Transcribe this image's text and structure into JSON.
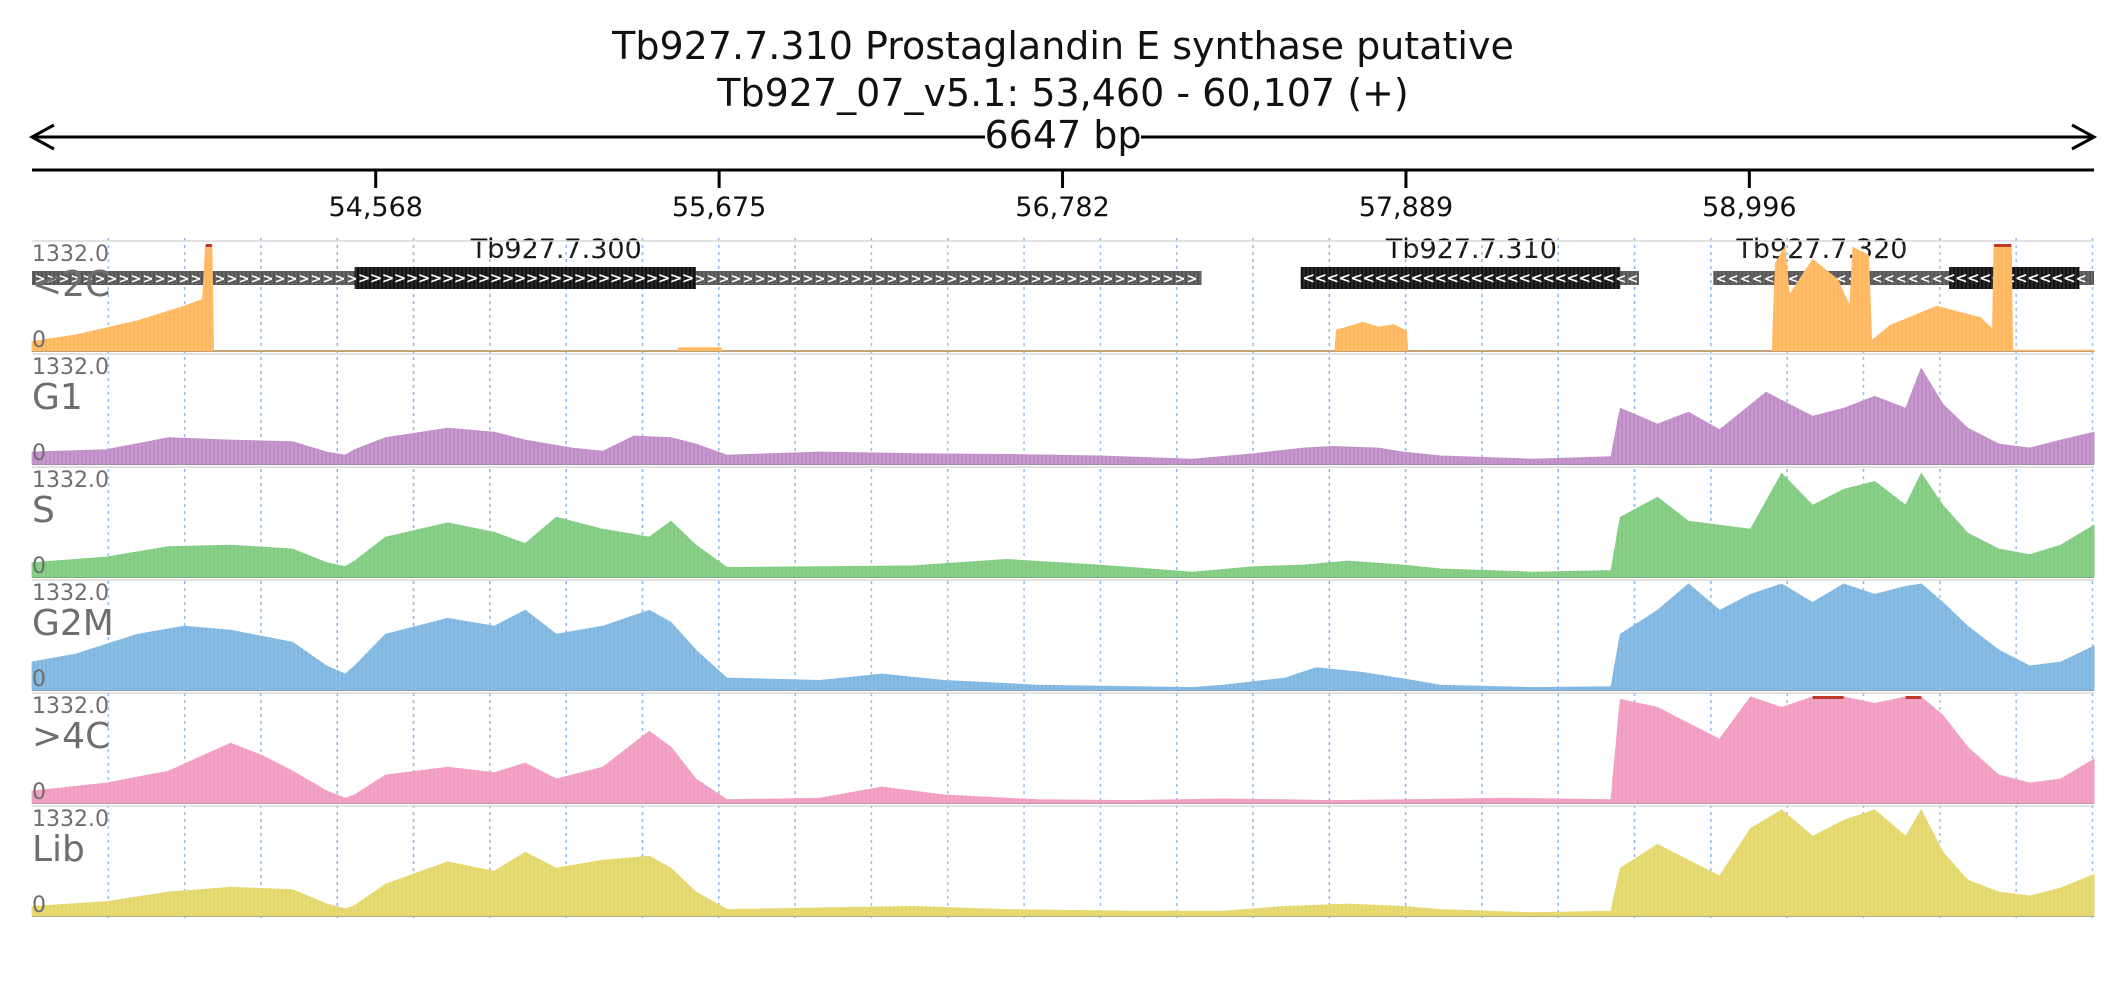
{
  "chart_data": {
    "type": "area",
    "title": "Tb927.7.310  Prostaglandin E synthase  putative",
    "subtitle": "Tb927_07_v5.1: 53,460 - 60,107 (+)",
    "span_label": "6647 bp",
    "x_range": [
      53460,
      60107
    ],
    "ticks": [
      {
        "value": 54568,
        "label": "54,568"
      },
      {
        "value": 55675,
        "label": "55,675"
      },
      {
        "value": 56782,
        "label": "56,782"
      },
      {
        "value": 57889,
        "label": "57,889"
      },
      {
        "value": 58996,
        "label": "58,996"
      }
    ],
    "gridlines_interval_bp": 246,
    "genes": [
      {
        "name": "Tb927.7.300",
        "show_label": true,
        "label_pos": 55150,
        "strand": "+",
        "utr": [
          53460,
          57230
        ],
        "cds": [
          54500,
          55600
        ]
      },
      {
        "name": "Tb927.7.310",
        "show_label": true,
        "label_pos": 58100,
        "strand": "-",
        "utr": [
          57550,
          58640
        ],
        "cds": [
          57550,
          58580
        ]
      },
      {
        "name": "Tb927.7.320",
        "show_label": true,
        "label_pos": 59230,
        "strand": "-",
        "utr": [
          58880,
          60107
        ],
        "cds": [
          59640,
          60060
        ]
      }
    ],
    "y_max_label": "1332.0",
    "y_min_label": "0",
    "y_max": 1332,
    "tracks": [
      {
        "name": "<2C",
        "color": "#ffb65c",
        "clip_color": "#c0392b",
        "profile": [
          [
            53460,
            120
          ],
          [
            53600,
            200
          ],
          [
            53800,
            380
          ],
          [
            53950,
            560
          ],
          [
            54010,
            650
          ],
          [
            54020,
            1332
          ],
          [
            54040,
            1332
          ],
          [
            54045,
            0
          ],
          [
            55540,
            0
          ],
          [
            55545,
            40
          ],
          [
            55680,
            40
          ],
          [
            55685,
            0
          ],
          [
            57660,
            0
          ],
          [
            57665,
            260
          ],
          [
            57750,
            360
          ],
          [
            57800,
            300
          ],
          [
            57850,
            330
          ],
          [
            57890,
            250
          ],
          [
            57895,
            0
          ],
          [
            59070,
            0
          ],
          [
            59080,
            1100
          ],
          [
            59110,
            1300
          ],
          [
            59125,
            700
          ],
          [
            59200,
            1150
          ],
          [
            59280,
            900
          ],
          [
            59320,
            560
          ],
          [
            59330,
            1300
          ],
          [
            59380,
            1200
          ],
          [
            59390,
            130
          ],
          [
            59450,
            320
          ],
          [
            59600,
            560
          ],
          [
            59740,
            420
          ],
          [
            59780,
            270
          ],
          [
            59785,
            1332
          ],
          [
            59840,
            1332
          ],
          [
            59845,
            10
          ],
          [
            60107,
            10
          ]
        ]
      },
      {
        "name": "G1",
        "color": "#c08cc8",
        "profile": [
          [
            53460,
            150
          ],
          [
            53700,
            180
          ],
          [
            53900,
            330
          ],
          [
            54100,
            300
          ],
          [
            54300,
            280
          ],
          [
            54410,
            150
          ],
          [
            54470,
            110
          ],
          [
            54500,
            180
          ],
          [
            54600,
            330
          ],
          [
            54800,
            450
          ],
          [
            54950,
            400
          ],
          [
            55050,
            300
          ],
          [
            55200,
            200
          ],
          [
            55300,
            160
          ],
          [
            55400,
            350
          ],
          [
            55520,
            330
          ],
          [
            55600,
            250
          ],
          [
            55700,
            110
          ],
          [
            56000,
            150
          ],
          [
            56300,
            130
          ],
          [
            56600,
            120
          ],
          [
            56900,
            100
          ],
          [
            57200,
            60
          ],
          [
            57400,
            130
          ],
          [
            57560,
            200
          ],
          [
            57650,
            220
          ],
          [
            57800,
            200
          ],
          [
            57880,
            150
          ],
          [
            58000,
            100
          ],
          [
            58300,
            60
          ],
          [
            58550,
            90
          ],
          [
            58580,
            700
          ],
          [
            58700,
            500
          ],
          [
            58800,
            650
          ],
          [
            58900,
            430
          ],
          [
            59050,
            900
          ],
          [
            59200,
            600
          ],
          [
            59300,
            700
          ],
          [
            59400,
            850
          ],
          [
            59500,
            700
          ],
          [
            59550,
            1200
          ],
          [
            59620,
            750
          ],
          [
            59700,
            450
          ],
          [
            59800,
            250
          ],
          [
            59900,
            200
          ],
          [
            60000,
            300
          ],
          [
            60107,
            400
          ]
        ]
      },
      {
        "name": "S",
        "color": "#7fcb7f",
        "profile": [
          [
            53460,
            180
          ],
          [
            53700,
            250
          ],
          [
            53900,
            380
          ],
          [
            54100,
            400
          ],
          [
            54300,
            350
          ],
          [
            54410,
            180
          ],
          [
            54470,
            130
          ],
          [
            54500,
            200
          ],
          [
            54600,
            500
          ],
          [
            54800,
            680
          ],
          [
            54950,
            560
          ],
          [
            55050,
            420
          ],
          [
            55150,
            750
          ],
          [
            55300,
            600
          ],
          [
            55450,
            500
          ],
          [
            55520,
            700
          ],
          [
            55600,
            400
          ],
          [
            55700,
            120
          ],
          [
            56000,
            130
          ],
          [
            56300,
            140
          ],
          [
            56600,
            220
          ],
          [
            56900,
            150
          ],
          [
            57200,
            60
          ],
          [
            57400,
            130
          ],
          [
            57560,
            150
          ],
          [
            57700,
            200
          ],
          [
            57880,
            150
          ],
          [
            58000,
            100
          ],
          [
            58300,
            60
          ],
          [
            58550,
            80
          ],
          [
            58580,
            750
          ],
          [
            58700,
            1000
          ],
          [
            58800,
            700
          ],
          [
            59000,
            600
          ],
          [
            59100,
            1300
          ],
          [
            59200,
            900
          ],
          [
            59300,
            1100
          ],
          [
            59400,
            1200
          ],
          [
            59500,
            900
          ],
          [
            59550,
            1300
          ],
          [
            59620,
            900
          ],
          [
            59700,
            550
          ],
          [
            59800,
            350
          ],
          [
            59900,
            280
          ],
          [
            60000,
            400
          ],
          [
            60107,
            650
          ]
        ]
      },
      {
        "name": "G2M",
        "color": "#7eb6e1",
        "profile": [
          [
            53460,
            350
          ],
          [
            53600,
            450
          ],
          [
            53800,
            700
          ],
          [
            53950,
            800
          ],
          [
            54100,
            750
          ],
          [
            54300,
            600
          ],
          [
            54410,
            300
          ],
          [
            54470,
            200
          ],
          [
            54500,
            300
          ],
          [
            54600,
            700
          ],
          [
            54800,
            900
          ],
          [
            54950,
            800
          ],
          [
            55050,
            1000
          ],
          [
            55150,
            700
          ],
          [
            55300,
            800
          ],
          [
            55450,
            1000
          ],
          [
            55520,
            850
          ],
          [
            55600,
            500
          ],
          [
            55700,
            150
          ],
          [
            56000,
            120
          ],
          [
            56200,
            200
          ],
          [
            56400,
            120
          ],
          [
            56700,
            60
          ],
          [
            57200,
            30
          ],
          [
            57300,
            60
          ],
          [
            57500,
            150
          ],
          [
            57600,
            280
          ],
          [
            57750,
            220
          ],
          [
            57880,
            140
          ],
          [
            58000,
            60
          ],
          [
            58300,
            30
          ],
          [
            58550,
            40
          ],
          [
            58580,
            700
          ],
          [
            58700,
            1000
          ],
          [
            58800,
            1332
          ],
          [
            58900,
            1000
          ],
          [
            59000,
            1200
          ],
          [
            59100,
            1332
          ],
          [
            59200,
            1100
          ],
          [
            59300,
            1332
          ],
          [
            59400,
            1200
          ],
          [
            59500,
            1300
          ],
          [
            59550,
            1332
          ],
          [
            59620,
            1100
          ],
          [
            59700,
            800
          ],
          [
            59800,
            500
          ],
          [
            59900,
            300
          ],
          [
            60000,
            350
          ],
          [
            60107,
            550
          ]
        ]
      },
      {
        "name": ">4C",
        "color": "#f29bc1",
        "profile": [
          [
            53460,
            150
          ],
          [
            53700,
            250
          ],
          [
            53900,
            400
          ],
          [
            54100,
            750
          ],
          [
            54200,
            600
          ],
          [
            54300,
            400
          ],
          [
            54410,
            150
          ],
          [
            54470,
            60
          ],
          [
            54500,
            100
          ],
          [
            54600,
            350
          ],
          [
            54800,
            450
          ],
          [
            54950,
            380
          ],
          [
            55050,
            500
          ],
          [
            55150,
            300
          ],
          [
            55300,
            450
          ],
          [
            55450,
            900
          ],
          [
            55520,
            700
          ],
          [
            55600,
            300
          ],
          [
            55700,
            40
          ],
          [
            56000,
            60
          ],
          [
            56200,
            200
          ],
          [
            56400,
            100
          ],
          [
            56700,
            40
          ],
          [
            57000,
            30
          ],
          [
            57300,
            50
          ],
          [
            57500,
            40
          ],
          [
            57650,
            30
          ],
          [
            57900,
            40
          ],
          [
            58200,
            60
          ],
          [
            58550,
            40
          ],
          [
            58580,
            1300
          ],
          [
            58700,
            1200
          ],
          [
            58800,
            1000
          ],
          [
            58900,
            800
          ],
          [
            59000,
            1332
          ],
          [
            59100,
            1200
          ],
          [
            59200,
            1332
          ],
          [
            59300,
            1332
          ],
          [
            59400,
            1250
          ],
          [
            59500,
            1332
          ],
          [
            59550,
            1332
          ],
          [
            59620,
            1100
          ],
          [
            59700,
            700
          ],
          [
            59800,
            350
          ],
          [
            59900,
            250
          ],
          [
            60000,
            300
          ],
          [
            60107,
            550
          ]
        ]
      },
      {
        "name": "Lib",
        "color": "#e3d769",
        "clip_color": "#c0392b",
        "profile": [
          [
            53460,
            120
          ],
          [
            53700,
            180
          ],
          [
            53900,
            300
          ],
          [
            54100,
            360
          ],
          [
            54300,
            330
          ],
          [
            54410,
            150
          ],
          [
            54470,
            90
          ],
          [
            54500,
            130
          ],
          [
            54600,
            400
          ],
          [
            54800,
            680
          ],
          [
            54950,
            560
          ],
          [
            55050,
            800
          ],
          [
            55150,
            600
          ],
          [
            55300,
            700
          ],
          [
            55450,
            750
          ],
          [
            55520,
            600
          ],
          [
            55600,
            300
          ],
          [
            55700,
            80
          ],
          [
            56000,
            100
          ],
          [
            56300,
            120
          ],
          [
            56600,
            80
          ],
          [
            57000,
            60
          ],
          [
            57300,
            60
          ],
          [
            57500,
            120
          ],
          [
            57700,
            150
          ],
          [
            57880,
            120
          ],
          [
            58000,
            80
          ],
          [
            58300,
            40
          ],
          [
            58550,
            60
          ],
          [
            58580,
            600
          ],
          [
            58700,
            900
          ],
          [
            58800,
            700
          ],
          [
            58900,
            500
          ],
          [
            59000,
            1100
          ],
          [
            59100,
            1332
          ],
          [
            59200,
            1000
          ],
          [
            59300,
            1200
          ],
          [
            59400,
            1332
          ],
          [
            59500,
            1000
          ],
          [
            59550,
            1332
          ],
          [
            59620,
            800
          ],
          [
            59700,
            450
          ],
          [
            59800,
            300
          ],
          [
            59900,
            250
          ],
          [
            60000,
            350
          ],
          [
            60107,
            520
          ]
        ]
      }
    ]
  }
}
